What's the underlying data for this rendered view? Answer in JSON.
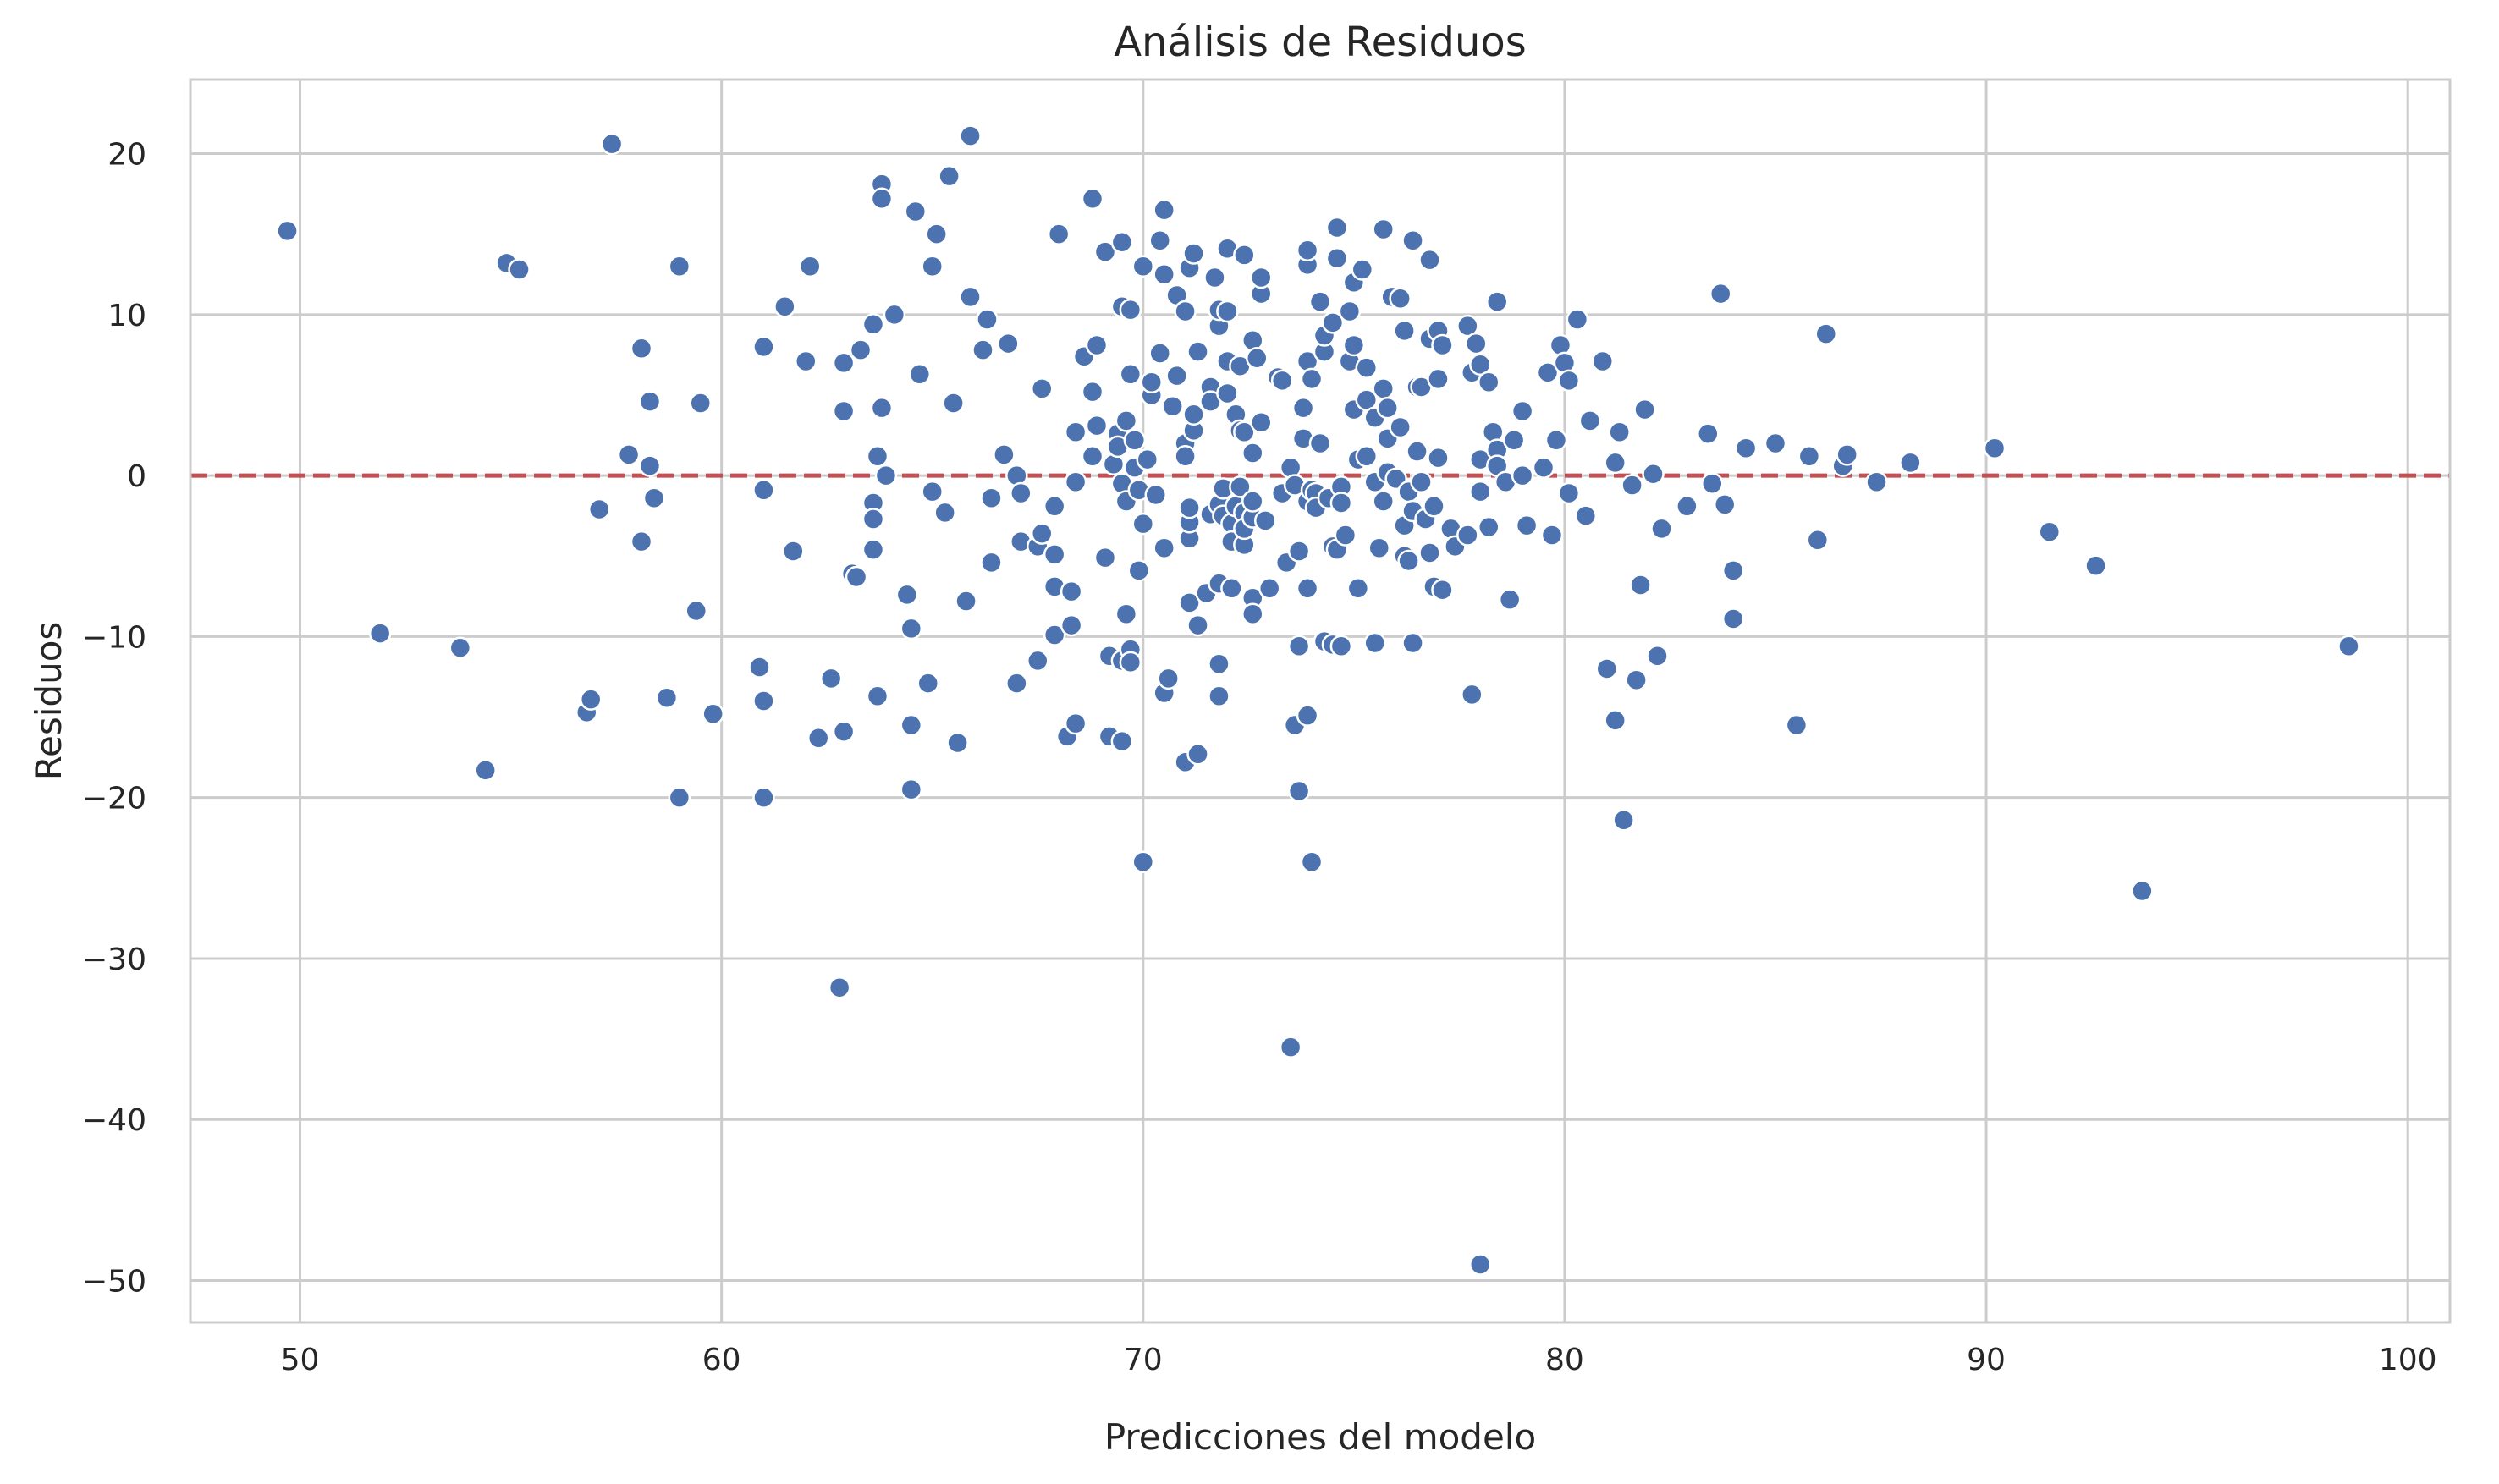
{
  "chart_data": {
    "type": "scatter",
    "title": "Análisis de Residuos",
    "xlabel": "Predicciones del modelo",
    "ylabel": "Residuos",
    "xlim": [
      47.4,
      101.0
    ],
    "ylim": [
      -52.6,
      24.6
    ],
    "xticks": [
      50,
      60,
      70,
      80,
      90,
      100
    ],
    "yticks": [
      20,
      10,
      0,
      -10,
      -20,
      -30,
      -40,
      -50
    ],
    "xtick_labels": [
      "50",
      "60",
      "70",
      "80",
      "90",
      "100"
    ],
    "ytick_labels": [
      "20",
      "10",
      "0",
      "−10",
      "−20",
      "−30",
      "−40",
      "−50"
    ],
    "grid": true,
    "reference_line": {
      "y": 0,
      "color": "#c44e52",
      "style": "dashed"
    },
    "point_color": "#4c72b0",
    "points": [
      [
        49.7,
        15.2
      ],
      [
        51.9,
        -9.8
      ],
      [
        53.8,
        -10.7
      ],
      [
        54.4,
        -18.3
      ],
      [
        54.9,
        13.2
      ],
      [
        55.2,
        12.8
      ],
      [
        56.8,
        -14.7
      ],
      [
        56.9,
        -13.9
      ],
      [
        57.1,
        -2.1
      ],
      [
        57.4,
        20.6
      ],
      [
        57.8,
        1.3
      ],
      [
        58.1,
        7.9
      ],
      [
        58.1,
        -4.1
      ],
      [
        58.3,
        0.6
      ],
      [
        58.3,
        4.6
      ],
      [
        58.4,
        -1.4
      ],
      [
        58.7,
        -13.8
      ],
      [
        59.0,
        13.0
      ],
      [
        59.0,
        -20.0
      ],
      [
        59.4,
        -8.4
      ],
      [
        59.5,
        4.5
      ],
      [
        59.8,
        -14.8
      ],
      [
        60.9,
        -11.9
      ],
      [
        61.0,
        -0.9
      ],
      [
        61.0,
        -14.0
      ],
      [
        61.0,
        8.0
      ],
      [
        61.0,
        -20.0
      ],
      [
        61.5,
        10.5
      ],
      [
        61.7,
        -4.7
      ],
      [
        62.0,
        7.1
      ],
      [
        62.1,
        13.0
      ],
      [
        62.3,
        -16.3
      ],
      [
        62.6,
        -12.6
      ],
      [
        62.8,
        -31.8
      ],
      [
        62.9,
        4.0
      ],
      [
        62.9,
        -15.9
      ],
      [
        62.9,
        7.0
      ],
      [
        63.1,
        -6.1
      ],
      [
        63.2,
        -6.3
      ],
      [
        63.3,
        7.8
      ],
      [
        63.6,
        9.4
      ],
      [
        63.6,
        -1.7
      ],
      [
        63.6,
        -2.7
      ],
      [
        63.6,
        -4.6
      ],
      [
        63.7,
        -13.7
      ],
      [
        63.7,
        1.2
      ],
      [
        63.8,
        18.1
      ],
      [
        63.8,
        17.2
      ],
      [
        63.8,
        4.2
      ],
      [
        63.9,
        0.0
      ],
      [
        64.1,
        10.0
      ],
      [
        64.4,
        -7.4
      ],
      [
        64.5,
        -9.5
      ],
      [
        64.5,
        -15.5
      ],
      [
        64.5,
        -19.5
      ],
      [
        64.6,
        16.4
      ],
      [
        64.7,
        6.3
      ],
      [
        64.9,
        -12.9
      ],
      [
        65.0,
        -1.0
      ],
      [
        65.0,
        13.0
      ],
      [
        65.1,
        15.0
      ],
      [
        65.3,
        -2.3
      ],
      [
        65.4,
        18.6
      ],
      [
        65.5,
        4.5
      ],
      [
        65.6,
        -16.6
      ],
      [
        65.8,
        -7.8
      ],
      [
        65.9,
        21.1
      ],
      [
        65.9,
        11.1
      ],
      [
        66.2,
        7.8
      ],
      [
        66.3,
        9.7
      ],
      [
        66.4,
        -1.4
      ],
      [
        66.4,
        -5.4
      ],
      [
        66.7,
        1.3
      ],
      [
        66.8,
        8.2
      ],
      [
        67.0,
        -12.9
      ],
      [
        67.0,
        0.0
      ],
      [
        67.1,
        -1.1
      ],
      [
        67.1,
        -4.1
      ],
      [
        67.5,
        -4.4
      ],
      [
        67.5,
        -11.5
      ],
      [
        67.6,
        5.4
      ],
      [
        67.6,
        -3.6
      ],
      [
        67.9,
        -9.9
      ],
      [
        67.9,
        -4.9
      ],
      [
        67.9,
        -1.9
      ],
      [
        67.9,
        -6.9
      ],
      [
        68.0,
        15.0
      ],
      [
        68.2,
        -16.2
      ],
      [
        68.3,
        -7.2
      ],
      [
        68.3,
        -9.3
      ],
      [
        68.4,
        2.7
      ],
      [
        68.4,
        -0.4
      ],
      [
        68.4,
        -15.4
      ],
      [
        68.6,
        7.4
      ],
      [
        68.8,
        5.2
      ],
      [
        68.8,
        17.2
      ],
      [
        68.8,
        1.2
      ],
      [
        68.9,
        3.1
      ],
      [
        68.9,
        8.1
      ],
      [
        69.1,
        -5.1
      ],
      [
        69.1,
        13.9
      ],
      [
        69.2,
        -11.2
      ],
      [
        69.2,
        -16.2
      ],
      [
        69.3,
        0.7
      ],
      [
        69.4,
        2.6
      ],
      [
        69.4,
        1.8
      ],
      [
        69.5,
        -0.5
      ],
      [
        69.5,
        -11.5
      ],
      [
        69.5,
        14.5
      ],
      [
        69.5,
        10.5
      ],
      [
        69.5,
        -16.5
      ],
      [
        69.6,
        3.4
      ],
      [
        69.6,
        -8.6
      ],
      [
        69.6,
        -1.6
      ],
      [
        69.7,
        -10.8
      ],
      [
        69.7,
        -11.6
      ],
      [
        69.7,
        10.3
      ],
      [
        69.7,
        6.3
      ],
      [
        69.8,
        0.5
      ],
      [
        69.8,
        2.2
      ],
      [
        69.9,
        -0.9
      ],
      [
        69.9,
        -5.9
      ],
      [
        70.0,
        -24.0
      ],
      [
        70.0,
        13.0
      ],
      [
        70.0,
        -3.0
      ],
      [
        70.1,
        1.0
      ],
      [
        70.2,
        5.0
      ],
      [
        70.2,
        5.8
      ],
      [
        70.3,
        -1.2
      ],
      [
        70.4,
        7.6
      ],
      [
        70.4,
        14.6
      ],
      [
        70.5,
        -4.5
      ],
      [
        70.5,
        -13.5
      ],
      [
        70.5,
        12.5
      ],
      [
        70.5,
        16.5
      ],
      [
        70.6,
        -12.6
      ],
      [
        70.7,
        4.3
      ],
      [
        70.8,
        6.2
      ],
      [
        70.8,
        11.2
      ],
      [
        71.0,
        2.0
      ],
      [
        71.0,
        -17.8
      ],
      [
        71.0,
        10.2
      ],
      [
        71.0,
        1.2
      ],
      [
        71.1,
        -7.9
      ],
      [
        71.1,
        -3.9
      ],
      [
        71.1,
        -2.9
      ],
      [
        71.1,
        -2.0
      ],
      [
        71.1,
        12.9
      ],
      [
        71.2,
        2.8
      ],
      [
        71.2,
        13.8
      ],
      [
        71.2,
        3.8
      ],
      [
        71.3,
        7.7
      ],
      [
        71.3,
        -17.3
      ],
      [
        71.3,
        -9.3
      ],
      [
        71.5,
        -7.3
      ],
      [
        71.6,
        5.5
      ],
      [
        71.6,
        4.6
      ],
      [
        71.6,
        -2.4
      ],
      [
        71.7,
        12.3
      ],
      [
        71.8,
        -1.8
      ],
      [
        71.8,
        9.3
      ],
      [
        71.8,
        10.3
      ],
      [
        71.8,
        -6.7
      ],
      [
        71.8,
        -13.7
      ],
      [
        71.8,
        -11.7
      ],
      [
        71.9,
        -2.5
      ],
      [
        71.9,
        -0.8
      ],
      [
        72.0,
        14.1
      ],
      [
        72.0,
        10.2
      ],
      [
        72.0,
        5.1
      ],
      [
        72.0,
        7.1
      ],
      [
        72.1,
        -7.0
      ],
      [
        72.1,
        -3.0
      ],
      [
        72.1,
        -4.1
      ],
      [
        72.2,
        -1.9
      ],
      [
        72.2,
        3.8
      ],
      [
        72.3,
        2.8
      ],
      [
        72.3,
        6.8
      ],
      [
        72.3,
        -0.7
      ],
      [
        72.4,
        -2.3
      ],
      [
        72.4,
        -4.3
      ],
      [
        72.4,
        -3.3
      ],
      [
        72.4,
        13.7
      ],
      [
        72.4,
        2.7
      ],
      [
        72.6,
        8.4
      ],
      [
        72.6,
        -2.6
      ],
      [
        72.6,
        -1.6
      ],
      [
        72.6,
        -7.6
      ],
      [
        72.6,
        -8.6
      ],
      [
        72.6,
        1.4
      ],
      [
        72.7,
        7.3
      ],
      [
        72.8,
        11.3
      ],
      [
        72.8,
        12.3
      ],
      [
        72.8,
        3.3
      ],
      [
        72.9,
        -2.8
      ],
      [
        73.0,
        -7.0
      ],
      [
        73.2,
        6.1
      ],
      [
        73.3,
        -1.1
      ],
      [
        73.3,
        5.9
      ],
      [
        73.4,
        -5.4
      ],
      [
        73.5,
        0.5
      ],
      [
        73.5,
        -35.5
      ],
      [
        73.6,
        -0.6
      ],
      [
        73.6,
        -15.5
      ],
      [
        73.7,
        -10.6
      ],
      [
        73.7,
        -19.6
      ],
      [
        73.7,
        -4.7
      ],
      [
        73.8,
        2.3
      ],
      [
        73.8,
        4.2
      ],
      [
        73.9,
        13.1
      ],
      [
        73.9,
        -7.0
      ],
      [
        73.9,
        7.1
      ],
      [
        73.9,
        -1.6
      ],
      [
        73.9,
        -14.9
      ],
      [
        73.9,
        14.0
      ],
      [
        74.0,
        6.0
      ],
      [
        74.0,
        -24.0
      ],
      [
        74.0,
        -0.9
      ],
      [
        74.1,
        -1.1
      ],
      [
        74.1,
        -2.0
      ],
      [
        74.2,
        2.0
      ],
      [
        74.2,
        10.8
      ],
      [
        74.3,
        -10.3
      ],
      [
        74.3,
        7.7
      ],
      [
        74.3,
        8.7
      ],
      [
        74.4,
        -1.4
      ],
      [
        74.5,
        -10.5
      ],
      [
        74.5,
        -4.4
      ],
      [
        74.5,
        9.5
      ],
      [
        74.6,
        -4.6
      ],
      [
        74.6,
        13.5
      ],
      [
        74.6,
        15.4
      ],
      [
        74.7,
        -10.6
      ],
      [
        74.7,
        -0.7
      ],
      [
        74.7,
        -1.7
      ],
      [
        74.8,
        -3.7
      ],
      [
        74.9,
        7.1
      ],
      [
        74.9,
        10.2
      ],
      [
        75.0,
        4.1
      ],
      [
        75.0,
        8.1
      ],
      [
        75.0,
        12.0
      ],
      [
        75.1,
        -7.0
      ],
      [
        75.1,
        1.0
      ],
      [
        75.2,
        12.8
      ],
      [
        75.3,
        6.7
      ],
      [
        75.3,
        4.7
      ],
      [
        75.3,
        1.2
      ],
      [
        75.5,
        3.6
      ],
      [
        75.5,
        -0.4
      ],
      [
        75.5,
        -10.4
      ],
      [
        75.6,
        -4.5
      ],
      [
        75.7,
        5.4
      ],
      [
        75.7,
        15.3
      ],
      [
        75.7,
        -1.6
      ],
      [
        75.8,
        2.3
      ],
      [
        75.8,
        0.2
      ],
      [
        75.8,
        4.2
      ],
      [
        75.9,
        11.1
      ],
      [
        76.0,
        -0.2
      ],
      [
        76.1,
        3.0
      ],
      [
        76.1,
        11.0
      ],
      [
        76.2,
        -5.0
      ],
      [
        76.2,
        9.0
      ],
      [
        76.2,
        -3.1
      ],
      [
        76.3,
        -1.0
      ],
      [
        76.3,
        -5.3
      ],
      [
        76.4,
        14.6
      ],
      [
        76.4,
        -10.4
      ],
      [
        76.4,
        -2.2
      ],
      [
        76.5,
        1.5
      ],
      [
        76.5,
        5.5
      ],
      [
        76.6,
        -0.4
      ],
      [
        76.6,
        5.5
      ],
      [
        76.7,
        -2.7
      ],
      [
        76.8,
        -4.8
      ],
      [
        76.8,
        8.5
      ],
      [
        76.8,
        13.4
      ],
      [
        76.9,
        -1.9
      ],
      [
        76.9,
        -6.9
      ],
      [
        77.0,
        1.1
      ],
      [
        77.0,
        9.0
      ],
      [
        77.0,
        6.0
      ],
      [
        77.1,
        8.1
      ],
      [
        77.1,
        -7.1
      ],
      [
        77.3,
        -3.3
      ],
      [
        77.4,
        -4.4
      ],
      [
        77.7,
        -3.7
      ],
      [
        77.7,
        9.3
      ],
      [
        77.8,
        6.4
      ],
      [
        77.8,
        -13.6
      ],
      [
        77.9,
        8.2
      ],
      [
        78.0,
        -1.0
      ],
      [
        78.0,
        1.0
      ],
      [
        78.0,
        -49.0
      ],
      [
        78.0,
        6.9
      ],
      [
        78.2,
        -3.2
      ],
      [
        78.2,
        5.8
      ],
      [
        78.3,
        2.7
      ],
      [
        78.4,
        1.6
      ],
      [
        78.4,
        0.6
      ],
      [
        78.4,
        10.8
      ],
      [
        78.6,
        -0.4
      ],
      [
        78.7,
        -7.7
      ],
      [
        78.8,
        2.2
      ],
      [
        79.0,
        4.0
      ],
      [
        79.0,
        0.0
      ],
      [
        79.1,
        -3.1
      ],
      [
        79.5,
        0.5
      ],
      [
        79.6,
        6.4
      ],
      [
        79.7,
        -3.7
      ],
      [
        79.8,
        2.2
      ],
      [
        79.9,
        8.1
      ],
      [
        80.0,
        7.0
      ],
      [
        80.1,
        5.9
      ],
      [
        80.1,
        -1.1
      ],
      [
        80.3,
        9.7
      ],
      [
        80.5,
        -2.5
      ],
      [
        80.6,
        3.4
      ],
      [
        80.9,
        7.1
      ],
      [
        81.0,
        -12.0
      ],
      [
        81.2,
        -15.2
      ],
      [
        81.2,
        0.8
      ],
      [
        81.3,
        2.7
      ],
      [
        81.4,
        -21.4
      ],
      [
        81.6,
        -0.6
      ],
      [
        81.7,
        -12.7
      ],
      [
        81.8,
        -6.8
      ],
      [
        81.9,
        4.1
      ],
      [
        82.1,
        0.1
      ],
      [
        82.2,
        -11.2
      ],
      [
        82.3,
        -3.3
      ],
      [
        82.9,
        -1.9
      ],
      [
        83.4,
        2.6
      ],
      [
        83.5,
        -0.5
      ],
      [
        83.7,
        11.3
      ],
      [
        83.8,
        -1.8
      ],
      [
        84.0,
        -8.9
      ],
      [
        84.0,
        -5.9
      ],
      [
        84.3,
        1.7
      ],
      [
        85.0,
        2.0
      ],
      [
        85.5,
        -15.5
      ],
      [
        85.8,
        1.2
      ],
      [
        86.0,
        -4.0
      ],
      [
        86.2,
        8.8
      ],
      [
        86.6,
        0.6
      ],
      [
        86.7,
        1.3
      ],
      [
        87.4,
        -0.4
      ],
      [
        88.2,
        0.8
      ],
      [
        90.2,
        1.7
      ],
      [
        91.5,
        -3.5
      ],
      [
        92.6,
        -5.6
      ],
      [
        93.7,
        -25.8
      ],
      [
        98.6,
        -10.6
      ]
    ]
  }
}
